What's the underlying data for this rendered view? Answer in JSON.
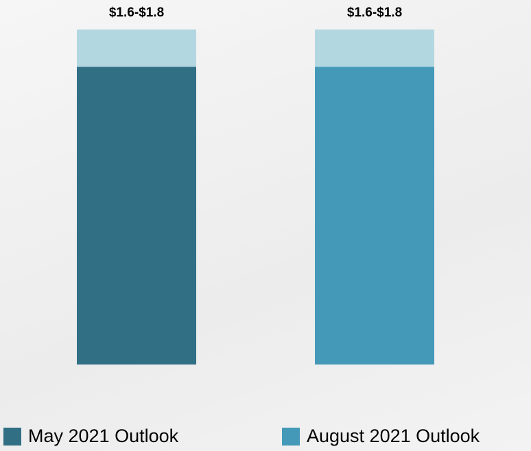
{
  "chart_data": {
    "type": "range_bar",
    "categories": [
      "May 2021 Outlook",
      "August 2021 Outlook"
    ],
    "low": [
      1.6,
      1.6
    ],
    "high": [
      1.8,
      1.8
    ],
    "value_labels": [
      "$1.6-$1.8",
      "$1.6-$1.8"
    ],
    "colors": [
      "#316f85",
      "#4499b8"
    ],
    "range_color": "#b3d7e1",
    "ylim": [
      0,
      1.8
    ],
    "legend": "bottom"
  }
}
